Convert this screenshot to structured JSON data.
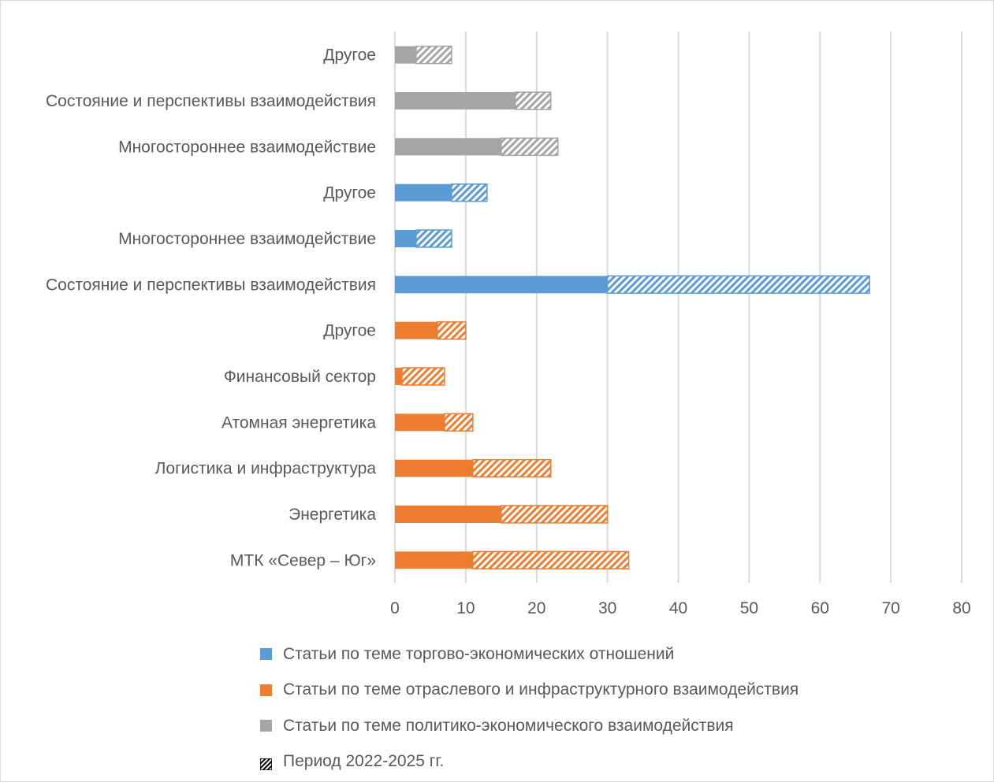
{
  "chart_data": {
    "type": "bar",
    "orientation": "horizontal",
    "stacked": true,
    "title": "",
    "xlabel": "",
    "ylabel": "",
    "xlim": [
      0,
      80
    ],
    "x_ticks": [
      "0",
      "10",
      "20",
      "30",
      "40",
      "50",
      "60",
      "70",
      "80"
    ],
    "grid": "vertical",
    "legend_position": "bottom",
    "colors": {
      "trade": "#5b9bd5",
      "sector": "#ed7d31",
      "political": "#a5a5a5",
      "period_pattern": "#000000"
    },
    "categories": [
      {
        "label": "Другое",
        "group": "political",
        "before_2022": 3,
        "period_2022_2025": 5
      },
      {
        "label": "Состояние и перспективы взаимодействия",
        "group": "political",
        "before_2022": 17,
        "period_2022_2025": 5
      },
      {
        "label": "Многостороннее взаимодействие",
        "group": "political",
        "before_2022": 15,
        "period_2022_2025": 8
      },
      {
        "label": "Другое",
        "group": "trade",
        "before_2022": 8,
        "period_2022_2025": 5
      },
      {
        "label": "Многостороннее взаимодействие",
        "group": "trade",
        "before_2022": 3,
        "period_2022_2025": 5
      },
      {
        "label": "Состояние и перспективы взаимодействия",
        "group": "trade",
        "before_2022": 30,
        "period_2022_2025": 37
      },
      {
        "label": "Другое",
        "group": "sector",
        "before_2022": 6,
        "period_2022_2025": 4
      },
      {
        "label": "Финансовый сектор",
        "group": "sector",
        "before_2022": 1,
        "period_2022_2025": 6
      },
      {
        "label": "Атомная энергетика",
        "group": "sector",
        "before_2022": 7,
        "period_2022_2025": 4
      },
      {
        "label": "Логистика и инфраструктура",
        "group": "sector",
        "before_2022": 11,
        "period_2022_2025": 11
      },
      {
        "label": "Энергетика",
        "group": "sector",
        "before_2022": 15,
        "period_2022_2025": 15
      },
      {
        "label": "МТК «Север – Юг»",
        "group": "sector",
        "before_2022": 11,
        "period_2022_2025": 22
      }
    ],
    "legend": [
      {
        "key": "trade",
        "label": "Статьи по теме торгово-экономических отношений"
      },
      {
        "key": "sector",
        "label": "Статьи по теме отраслевого и инфраструктурного взаимодействия"
      },
      {
        "key": "political",
        "label": "Статьи по теме политико-экономического взаимодействия"
      },
      {
        "key": "period",
        "label": "Период 2022-2025 гг."
      }
    ]
  }
}
